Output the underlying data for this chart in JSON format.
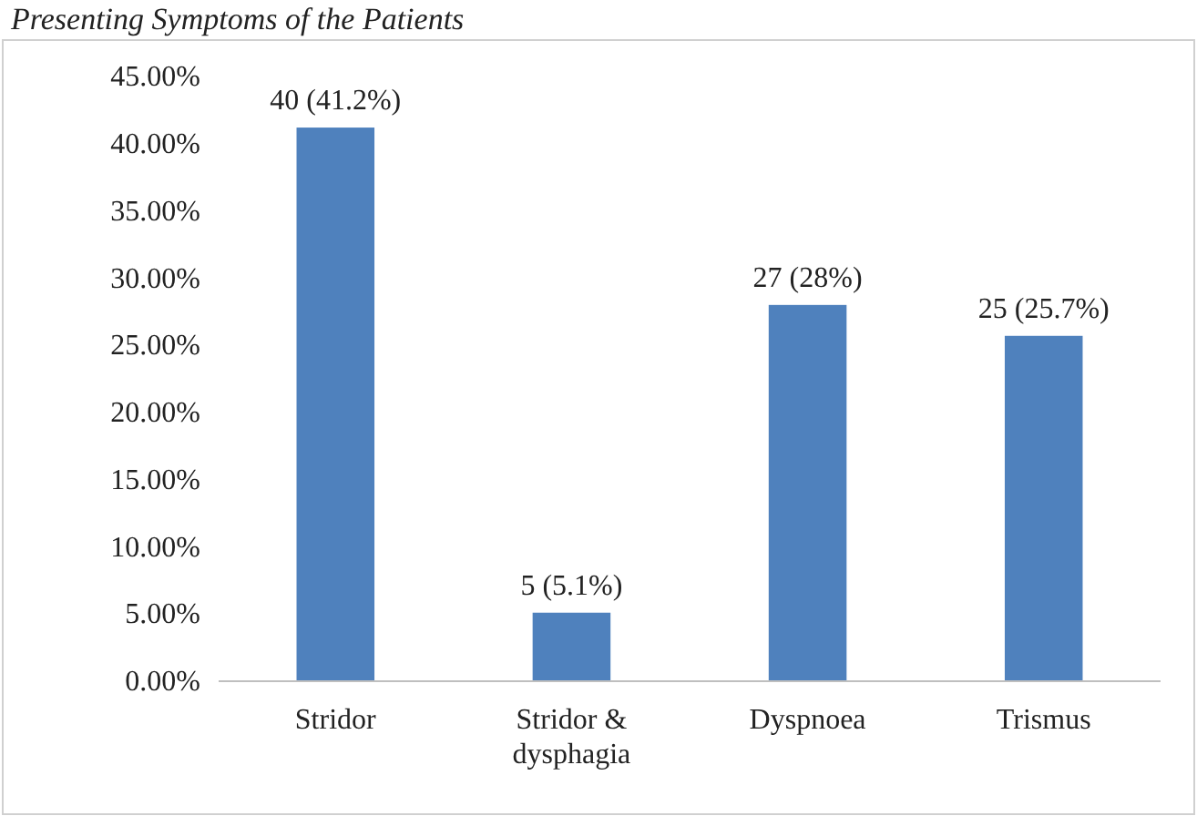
{
  "chart_data": {
    "type": "bar",
    "title": "Presenting Symptoms of the Patients",
    "categories": [
      "Stridor",
      "Stridor & dysphagia",
      "Dyspnoea",
      "Trismus"
    ],
    "values": [
      41.2,
      5.1,
      28,
      25.7
    ],
    "value_labels": [
      "40 (41.2%)",
      "5 (5.1%)",
      "27 (28%)",
      "25 (25.7%)"
    ],
    "color": "#4f81bd",
    "ylim": [
      0,
      45
    ],
    "yticks": [
      {
        "value": 0,
        "label": "0.00%"
      },
      {
        "value": 5,
        "label": "5.00%"
      },
      {
        "value": 10,
        "label": "10.00%"
      },
      {
        "value": 15,
        "label": "15.00%"
      },
      {
        "value": 20,
        "label": "20.00%"
      },
      {
        "value": 25,
        "label": "25.00%"
      },
      {
        "value": 30,
        "label": "30.00%"
      },
      {
        "value": 35,
        "label": "35.00%"
      },
      {
        "value": 40,
        "label": "40.00%"
      },
      {
        "value": 45,
        "label": "45.00%"
      }
    ],
    "grid": false
  }
}
